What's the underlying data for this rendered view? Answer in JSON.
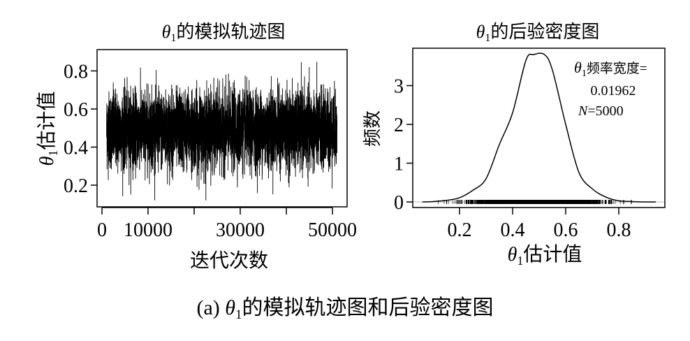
{
  "chart_data": [
    {
      "type": "line",
      "title": {
        "symbol": "θ",
        "sub": "1",
        "text": "的模拟轨迹图"
      },
      "xlabel": "迭代次数",
      "ylabel": {
        "symbol": "θ",
        "sub": "1",
        "text": "估计值"
      },
      "xlim": [
        0,
        52000
      ],
      "ylim": [
        0.1,
        0.88
      ],
      "xticks": [
        0,
        10000,
        20000,
        30000,
        40000,
        50000
      ],
      "xtick_labels": [
        "0",
        "10000",
        "",
        "30000",
        "",
        "50000"
      ],
      "yticks": [
        0.2,
        0.4,
        0.6,
        0.8
      ],
      "ytick_labels": [
        "0.2",
        "0.4",
        "0.6",
        "0.8"
      ],
      "iterations": [
        1000,
        51000
      ],
      "n_samples": 5000,
      "sample_mean": 0.49,
      "sample_sd": 0.1,
      "sample_min": 0.12,
      "sample_max": 0.88
    },
    {
      "type": "line",
      "title": {
        "symbol": "θ",
        "sub": "1",
        "text": "的后验密度图"
      },
      "xlabel": {
        "symbol": "θ",
        "sub": "1",
        "text": "估计值"
      },
      "ylabel": "频数",
      "xlim": [
        0.0,
        1.0
      ],
      "ylim": [
        -0.15,
        3.95
      ],
      "xticks": [
        0.2,
        0.4,
        0.6,
        0.8
      ],
      "xtick_labels": [
        "0.2",
        "0.4",
        "0.6",
        "0.8"
      ],
      "yticks": [
        0,
        1,
        2,
        3
      ],
      "ytick_labels": [
        "0",
        "1",
        "2",
        "3"
      ],
      "x": [
        0.06,
        0.1,
        0.15,
        0.2,
        0.25,
        0.3,
        0.35,
        0.4,
        0.45,
        0.48,
        0.52,
        0.55,
        0.6,
        0.65,
        0.7,
        0.75,
        0.8,
        0.85,
        0.9,
        0.94
      ],
      "y": [
        0.0,
        0.01,
        0.04,
        0.11,
        0.3,
        0.6,
        1.48,
        2.3,
        3.65,
        3.8,
        3.8,
        3.4,
        2.0,
        0.76,
        0.34,
        0.13,
        0.03,
        0.01,
        0.0,
        0.0
      ],
      "annotation": {
        "symbol": "θ",
        "sub": "1",
        "label": "频率宽度=",
        "bandwidth": "0.01962",
        "n_symbol": "N",
        "n_text": "=5000"
      }
    }
  ],
  "caption": {
    "prefix": "(a) ",
    "symbol": "θ",
    "sub": "1",
    "text": "的模拟轨迹图和后验密度图"
  }
}
